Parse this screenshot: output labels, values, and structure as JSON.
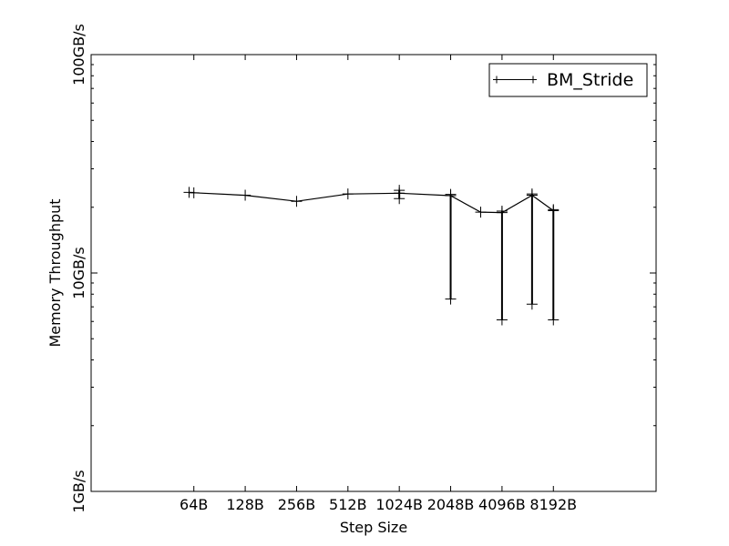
{
  "chart_data": {
    "type": "line",
    "title": "",
    "xlabel": "Step Size",
    "ylabel": "Memory Throughput",
    "x_scale": "log2",
    "y_scale": "log10",
    "y_unit": "GB/s",
    "xlim": [
      16,
      32768
    ],
    "ylim": [
      1,
      100
    ],
    "xticks": [
      {
        "value": 64,
        "label": "64B"
      },
      {
        "value": 128,
        "label": "128B"
      },
      {
        "value": 256,
        "label": "256B"
      },
      {
        "value": 512,
        "label": "512B"
      },
      {
        "value": 1024,
        "label": "1024B"
      },
      {
        "value": 2048,
        "label": "2048B"
      },
      {
        "value": 4096,
        "label": "4096B"
      },
      {
        "value": 8192,
        "label": "8192B"
      }
    ],
    "yticks": [
      {
        "value": 1,
        "label": "1GB/s"
      },
      {
        "value": 10,
        "label": "10GB/s"
      },
      {
        "value": 100,
        "label": "100GB/s"
      }
    ],
    "grid": false,
    "legend": {
      "position": "top-right"
    },
    "series": [
      {
        "name": "BM_Stride",
        "color": "#000000",
        "marker": "plus",
        "x": [
          60,
          64,
          128,
          256,
          512,
          1024,
          2048,
          3072,
          4096,
          6144,
          8192
        ],
        "y": [
          23.4,
          23.3,
          22.7,
          21.3,
          23.0,
          23.2,
          22.6,
          19.0,
          18.9,
          22.7,
          19.3
        ],
        "range": [
          null,
          null,
          null,
          null,
          null,
          [
            21.9,
            23.9
          ],
          [
            7.6,
            22.9
          ],
          null,
          [
            6.1,
            19.2
          ],
          [
            7.2,
            23.0
          ],
          [
            6.1,
            19.5
          ]
        ]
      }
    ]
  }
}
